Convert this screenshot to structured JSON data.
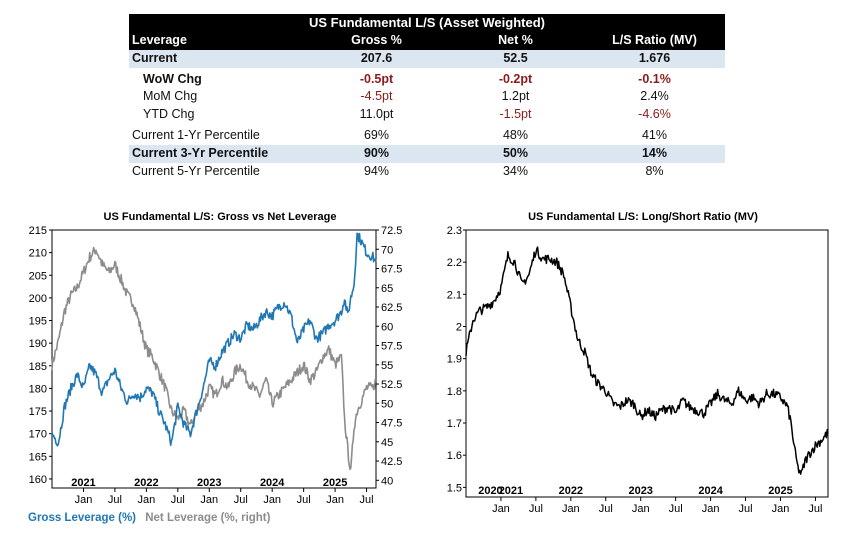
{
  "table": {
    "title": "US Fundamental L/S (Asset Weighted)",
    "headers": [
      "Leverage",
      "Gross %",
      "Net %",
      "L/S Ratio (MV)"
    ],
    "rows": [
      {
        "label": "Current",
        "values": [
          "207.6",
          "52.5",
          "1.676"
        ]
      },
      {
        "label": "WoW Chg",
        "values": [
          "-0.5pt",
          "-0.2pt",
          "-0.1%"
        ]
      },
      {
        "label": "MoM Chg",
        "values": [
          "-4.5pt",
          "1.2pt",
          "2.4%"
        ]
      },
      {
        "label": "YTD Chg",
        "values": [
          "11.0pt",
          "-1.5pt",
          "-4.6%"
        ]
      },
      {
        "label": "Current 1-Yr Percentile",
        "values": [
          "69%",
          "48%",
          "41%"
        ]
      },
      {
        "label": "Current 3-Yr Percentile",
        "values": [
          "90%",
          "50%",
          "14%"
        ]
      },
      {
        "label": "Current 5-Yr Percentile",
        "values": [
          "94%",
          "34%",
          "8%"
        ]
      }
    ]
  },
  "colors": {
    "gross": "#1f77b4",
    "net": "#8c8c8c",
    "ratio": "#000000",
    "negative": "#8b1a1a",
    "shade": "#dce6f1"
  },
  "chart_data": [
    {
      "type": "line",
      "title": "US Fundamental L/S: Gross vs Net Leverage",
      "x_range": [
        2020.5,
        2025.65
      ],
      "ylim_left": [
        158,
        215
      ],
      "ylim_right": [
        39,
        72.5
      ],
      "left_ticks": [
        160,
        165,
        170,
        175,
        180,
        185,
        190,
        195,
        200,
        205,
        210,
        215
      ],
      "right_ticks": [
        "40",
        "42.5",
        "45",
        "47.5",
        "50",
        "52.5",
        "55",
        "57.5",
        "60",
        "62.5",
        "65",
        "67.5",
        "70",
        "72.5"
      ],
      "year_labels": [
        "2021",
        "2022",
        "2023",
        "2024",
        "2025"
      ],
      "month_labels": [
        "Jan",
        "Jul",
        "Jan",
        "Jul",
        "Jan",
        "Jul",
        "Jan",
        "Jul",
        "Jan",
        "Jul"
      ],
      "series": [
        {
          "name": "Gross Leverage (%)",
          "axis": "left",
          "x": [
            2020.5,
            2020.6,
            2020.7,
            2020.8,
            2020.9,
            2021.0,
            2021.1,
            2021.2,
            2021.3,
            2021.4,
            2021.5,
            2021.6,
            2021.7,
            2021.8,
            2021.9,
            2022.0,
            2022.1,
            2022.2,
            2022.3,
            2022.4,
            2022.5,
            2022.6,
            2022.7,
            2022.8,
            2022.9,
            2023.0,
            2023.1,
            2023.2,
            2023.3,
            2023.4,
            2023.5,
            2023.6,
            2023.7,
            2023.8,
            2023.9,
            2024.0,
            2024.1,
            2024.2,
            2024.3,
            2024.4,
            2024.5,
            2024.6,
            2024.7,
            2024.8,
            2024.9,
            2025.0,
            2025.1,
            2025.15,
            2025.2,
            2025.25,
            2025.3,
            2025.35,
            2025.4,
            2025.5,
            2025.6,
            2025.65
          ],
          "y": [
            170,
            168,
            176,
            180,
            183,
            180,
            185,
            183,
            179,
            182,
            184,
            180,
            177,
            179,
            178,
            180,
            179,
            175,
            172,
            168,
            176,
            172,
            170,
            175,
            180,
            186,
            185,
            188,
            190,
            192,
            191,
            194,
            193,
            195,
            197,
            196,
            198,
            199,
            196,
            190,
            193,
            195,
            191,
            192,
            194,
            195,
            197,
            200,
            196,
            200,
            203,
            214,
            213,
            210,
            209,
            208
          ]
        },
        {
          "name": "Net Leverage (%, right)",
          "axis": "right",
          "x": [
            2020.5,
            2020.6,
            2020.7,
            2020.8,
            2020.9,
            2021.0,
            2021.1,
            2021.2,
            2021.3,
            2021.4,
            2021.5,
            2021.6,
            2021.7,
            2021.8,
            2021.9,
            2022.0,
            2022.1,
            2022.2,
            2022.3,
            2022.4,
            2022.5,
            2022.6,
            2022.7,
            2022.8,
            2022.9,
            2023.0,
            2023.1,
            2023.2,
            2023.3,
            2023.4,
            2023.5,
            2023.6,
            2023.7,
            2023.8,
            2023.9,
            2024.0,
            2024.1,
            2024.2,
            2024.3,
            2024.4,
            2024.5,
            2024.6,
            2024.7,
            2024.8,
            2024.9,
            2025.0,
            2025.1,
            2025.15,
            2025.2,
            2025.25,
            2025.3,
            2025.35,
            2025.4,
            2025.5,
            2025.6,
            2025.65
          ],
          "y": [
            55,
            58,
            62,
            64,
            65,
            67,
            69,
            70,
            68,
            67,
            68,
            66,
            64,
            63,
            60,
            57,
            56,
            54,
            52,
            49,
            48,
            49,
            47,
            49,
            50,
            52,
            51,
            53,
            52,
            54,
            55,
            53,
            52,
            51,
            53,
            50,
            51,
            52,
            53,
            54,
            55,
            53,
            54,
            56,
            57,
            55,
            56,
            48,
            44,
            41,
            47,
            49,
            50,
            52,
            52,
            53
          ]
        }
      ],
      "legend": [
        "Gross Leverage (%)",
        "Net Leverage (%, right)"
      ]
    },
    {
      "type": "line",
      "title": "US Fundamental L/S: Long/Short Ratio (MV)",
      "x_range": [
        2020.5,
        2025.68
      ],
      "ylim": [
        1.47,
        2.3
      ],
      "y_ticks": [
        "1.5",
        "1.6",
        "1.7",
        "1.8",
        "1.9",
        "2",
        "2.1",
        "2.2",
        "2.3"
      ],
      "year_labels": [
        "2020",
        "2021",
        "2022",
        "2023",
        "2024",
        "2025"
      ],
      "month_labels": [
        "Jan",
        "Jul",
        "Jan",
        "Jul",
        "Jan",
        "Jul",
        "Jan",
        "Jul",
        "Jan",
        "Jul"
      ],
      "series": [
        {
          "name": "Long/Short Ratio (MV)",
          "x": [
            2020.5,
            2020.6,
            2020.7,
            2020.8,
            2020.9,
            2021.0,
            2021.1,
            2021.2,
            2021.3,
            2021.4,
            2021.5,
            2021.6,
            2021.7,
            2021.8,
            2021.9,
            2022.0,
            2022.1,
            2022.2,
            2022.3,
            2022.4,
            2022.5,
            2022.6,
            2022.7,
            2022.8,
            2022.9,
            2023.0,
            2023.1,
            2023.2,
            2023.3,
            2023.4,
            2023.5,
            2023.6,
            2023.7,
            2023.8,
            2023.9,
            2024.0,
            2024.1,
            2024.2,
            2024.3,
            2024.4,
            2024.5,
            2024.6,
            2024.7,
            2024.8,
            2024.9,
            2025.0,
            2025.1,
            2025.15,
            2025.2,
            2025.25,
            2025.3,
            2025.35,
            2025.4,
            2025.5,
            2025.6,
            2025.68
          ],
          "y": [
            1.92,
            2.02,
            2.05,
            2.06,
            2.08,
            2.12,
            2.22,
            2.2,
            2.13,
            2.16,
            2.24,
            2.21,
            2.21,
            2.2,
            2.16,
            2.06,
            1.96,
            1.92,
            1.85,
            1.82,
            1.8,
            1.76,
            1.75,
            1.77,
            1.76,
            1.72,
            1.74,
            1.72,
            1.74,
            1.75,
            1.73,
            1.77,
            1.75,
            1.74,
            1.73,
            1.76,
            1.79,
            1.77,
            1.76,
            1.8,
            1.77,
            1.78,
            1.76,
            1.79,
            1.79,
            1.78,
            1.75,
            1.7,
            1.62,
            1.56,
            1.54,
            1.58,
            1.6,
            1.63,
            1.65,
            1.67
          ]
        }
      ]
    }
  ]
}
